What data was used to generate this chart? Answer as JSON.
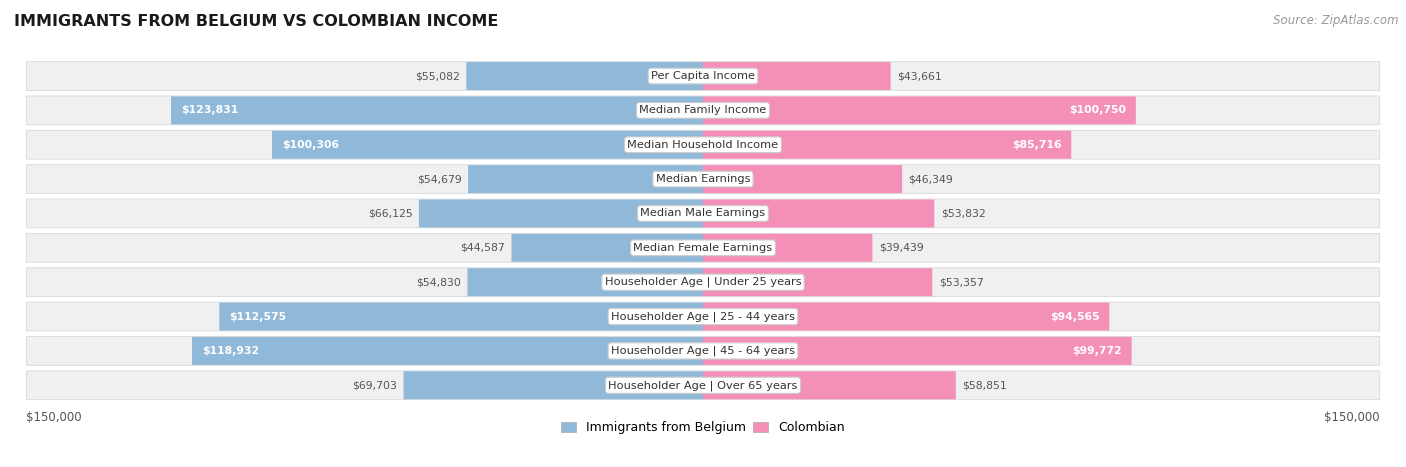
{
  "title": "IMMIGRANTS FROM BELGIUM VS COLOMBIAN INCOME",
  "source": "Source: ZipAtlas.com",
  "categories": [
    "Per Capita Income",
    "Median Family Income",
    "Median Household Income",
    "Median Earnings",
    "Median Male Earnings",
    "Median Female Earnings",
    "Householder Age | Under 25 years",
    "Householder Age | 25 - 44 years",
    "Householder Age | 45 - 64 years",
    "Householder Age | Over 65 years"
  ],
  "belgium_values": [
    55082,
    123831,
    100306,
    54679,
    66125,
    44587,
    54830,
    112575,
    118932,
    69703
  ],
  "colombian_values": [
    43661,
    100750,
    85716,
    46349,
    53832,
    39439,
    53357,
    94565,
    99772,
    58851
  ],
  "belgium_color": "#90b8d8",
  "colombian_color": "#f490b8",
  "belgium_bar_color": "#6fa8d0",
  "colombian_bar_color": "#f06899",
  "max_value": 150000,
  "bg_color": "#ffffff",
  "row_bg": "#f0f0f0",
  "legend_belgium": "Immigrants from Belgium",
  "legend_colombian": "Colombian",
  "x_label_left": "$150,000",
  "x_label_right": "$150,000",
  "inside_label_threshold": 80000
}
